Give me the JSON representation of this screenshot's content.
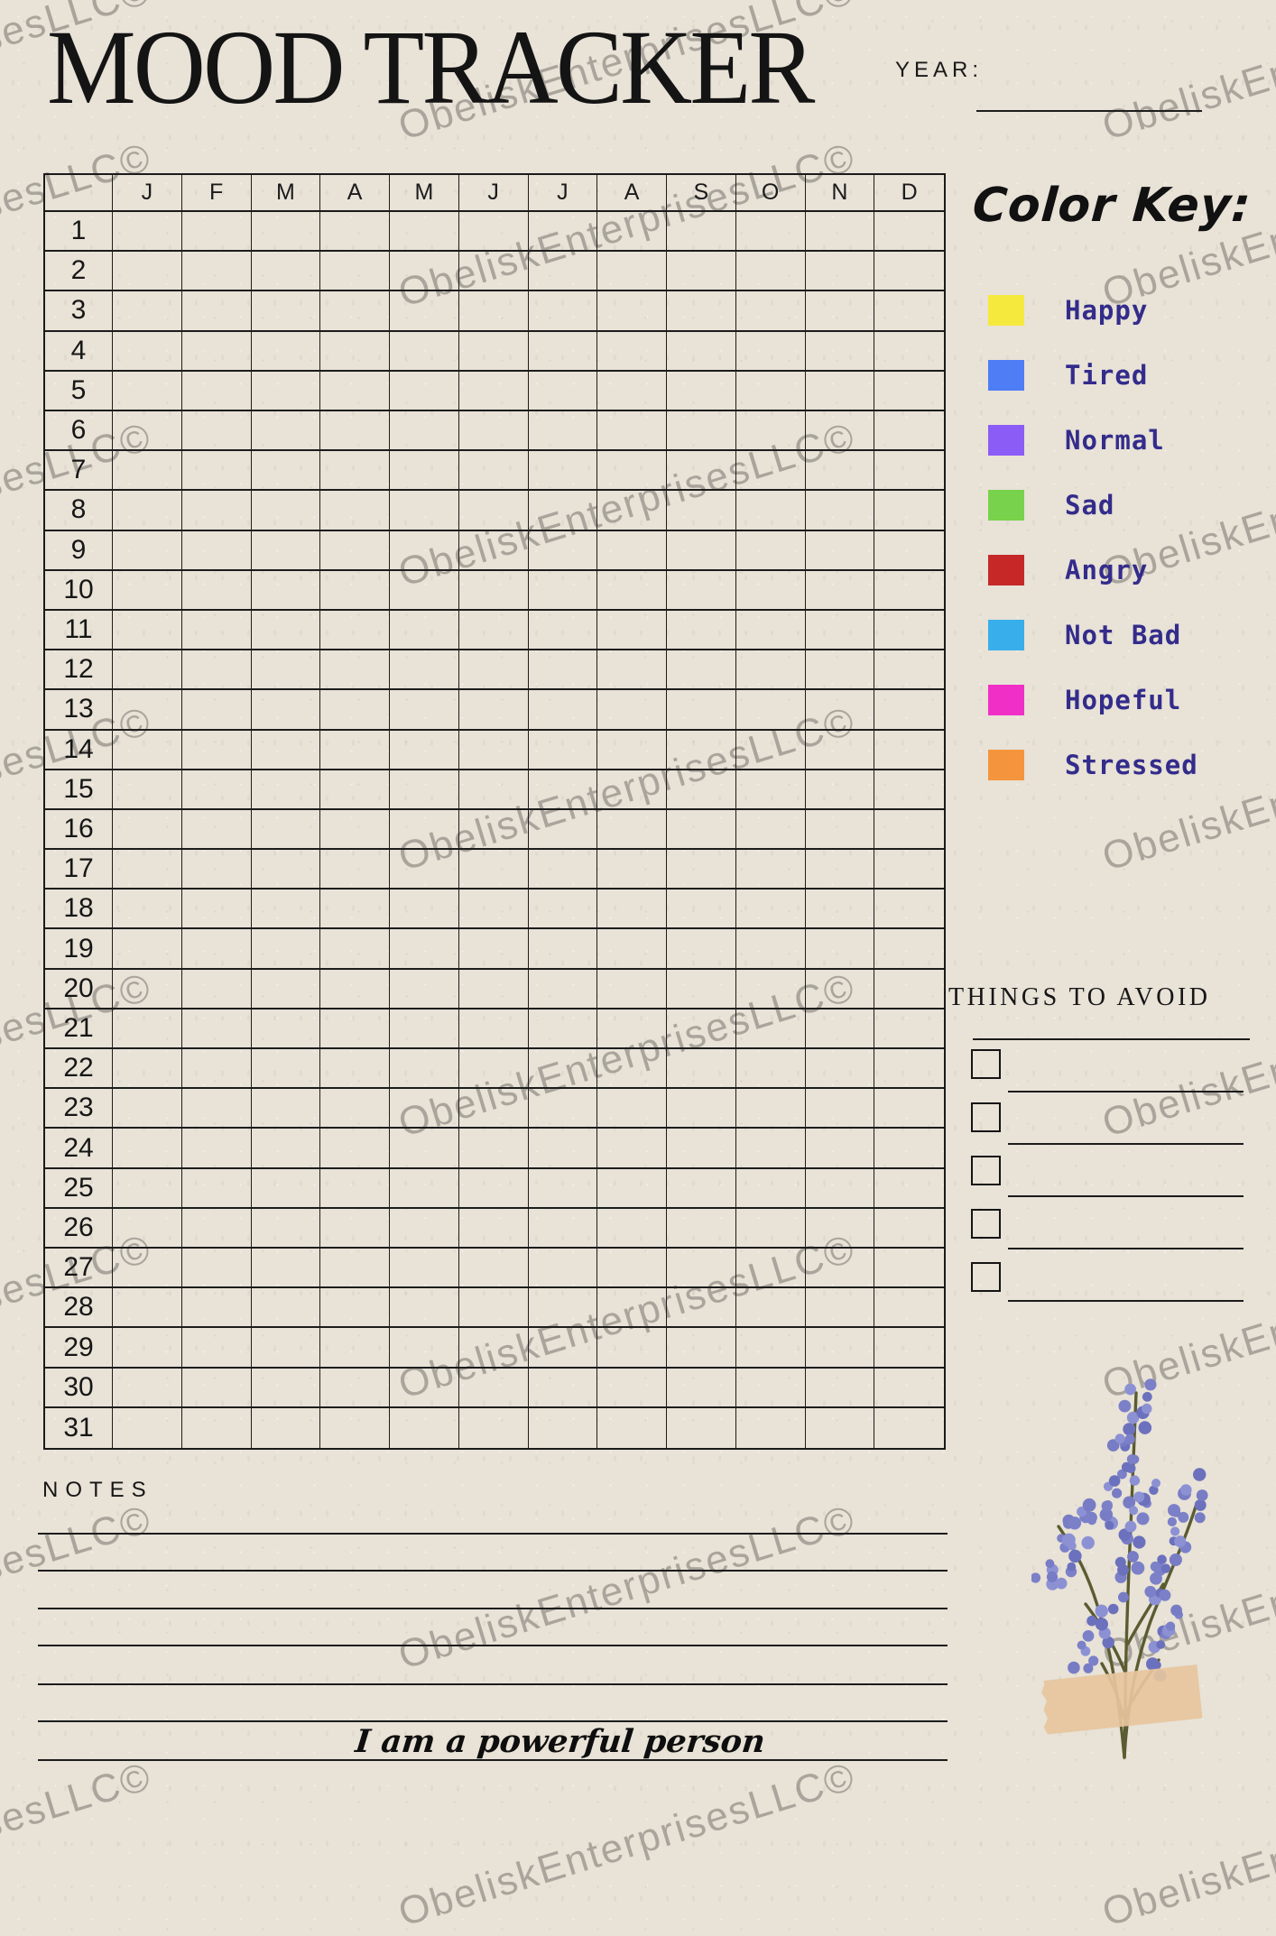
{
  "page": {
    "title": "MOOD TRACKER",
    "year_label": "YEAR:",
    "affirmation": "I am a powerful person",
    "watermark_text": "ObeliskEnterprisesLLC©"
  },
  "tracker_grid": {
    "months": [
      "J",
      "F",
      "M",
      "A",
      "M",
      "J",
      "J",
      "A",
      "S",
      "O",
      "N",
      "D"
    ],
    "days": [
      1,
      2,
      3,
      4,
      5,
      6,
      7,
      8,
      9,
      10,
      11,
      12,
      13,
      14,
      15,
      16,
      17,
      18,
      19,
      20,
      21,
      22,
      23,
      24,
      25,
      26,
      27,
      28,
      29,
      30,
      31
    ]
  },
  "color_key": {
    "heading": "Color Key:",
    "label_color": "#332c8b",
    "items": [
      {
        "label": "Happy",
        "color": "#f6e93d"
      },
      {
        "label": "Tired",
        "color": "#4f7df6"
      },
      {
        "label": "Normal",
        "color": "#8c5cf6"
      },
      {
        "label": "Sad",
        "color": "#78d24b"
      },
      {
        "label": "Angry",
        "color": "#c62828"
      },
      {
        "label": "Not Bad",
        "color": "#38aeeb"
      },
      {
        "label": "Hopeful",
        "color": "#f02fc7"
      },
      {
        "label": "Stressed",
        "color": "#f4953d"
      }
    ]
  },
  "things_to_avoid": {
    "heading": "THINGS TO AVOID",
    "checkbox_count": 5,
    "line_count": 6
  },
  "notes": {
    "heading": "NOTES",
    "line_count": 7
  }
}
